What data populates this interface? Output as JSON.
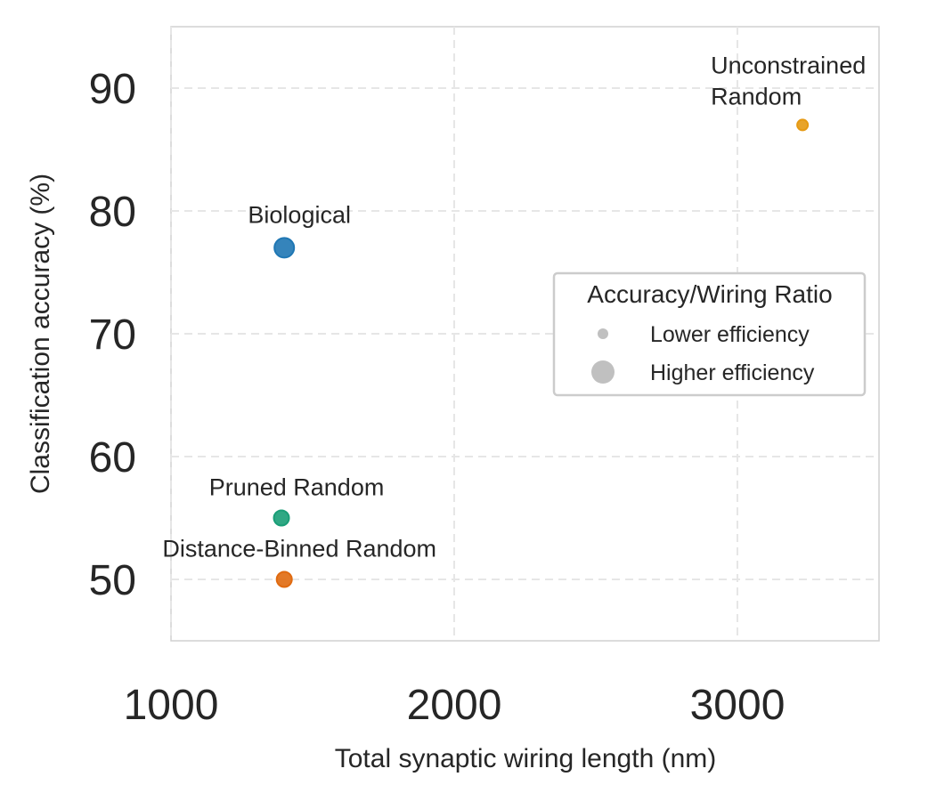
{
  "chart_data": {
    "type": "scatter",
    "title": "",
    "xlabel": "Total synaptic wiring length (nm)",
    "ylabel": "Classification accuracy (%)",
    "xlim": [
      1000,
      3500
    ],
    "ylim": [
      45,
      95
    ],
    "xticks": [
      1000,
      2000,
      3000
    ],
    "yticks": [
      50,
      60,
      70,
      80,
      90
    ],
    "xtick_labels": [
      "1000",
      "2000",
      "3000"
    ],
    "ytick_labels": [
      "50",
      "60",
      "70",
      "80",
      "90"
    ],
    "grid": true,
    "points": [
      {
        "label": "Biological",
        "x": 1400,
        "y": 77,
        "color": "#1f77b4",
        "size": "large",
        "label_pos": "above"
      },
      {
        "label": "Pruned Random",
        "x": 1390,
        "y": 55,
        "color": "#1a9e77",
        "size": "medium",
        "label_pos": "above"
      },
      {
        "label": "Distance-Binned Random",
        "x": 1400,
        "y": 50,
        "color": "#e06a10",
        "size": "medium",
        "label_pos": "above"
      },
      {
        "label": "Unconstrained\nRandom",
        "x": 3230,
        "y": 87,
        "color": "#e69a14",
        "size": "small",
        "label_pos": "above-left"
      }
    ],
    "legend": {
      "title": "Accuracy/Wiring Ratio",
      "placement": "center-right",
      "entries": [
        {
          "label": "Lower efficiency",
          "size": "small",
          "color": "#b0b0b0"
        },
        {
          "label": "Higher efficiency",
          "size": "large",
          "color": "#b0b0b0"
        }
      ]
    }
  }
}
